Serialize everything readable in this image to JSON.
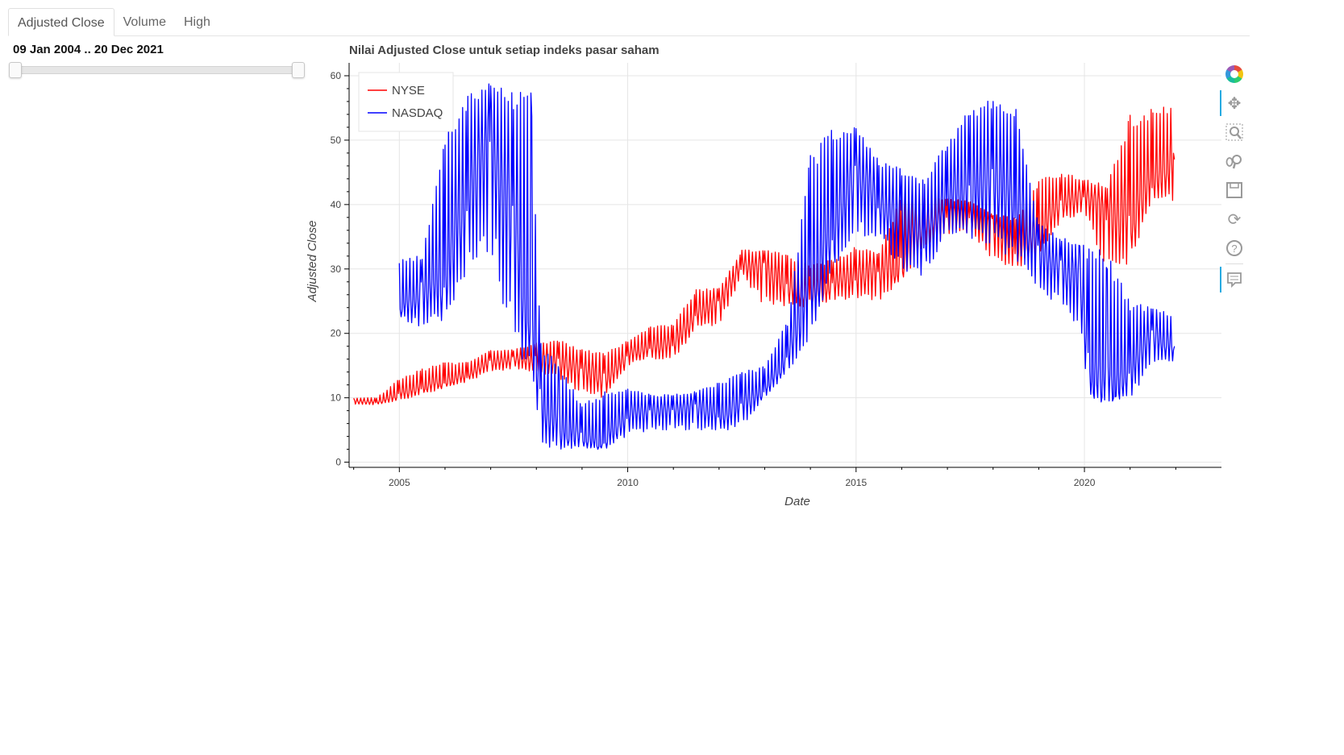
{
  "tabs": [
    {
      "label": "Adjusted Close",
      "active": true
    },
    {
      "label": "Volume",
      "active": false
    },
    {
      "label": "High",
      "active": false
    }
  ],
  "date_slider": {
    "label": "09 Jan 2004 .. 20 Dec 2021",
    "start": "2004-01-09",
    "end": "2021-12-20"
  },
  "toolbar": {
    "tools": [
      "bokeh-logo-icon",
      "pan-icon",
      "box-zoom-icon",
      "wheel-zoom-icon",
      "save-icon",
      "reset-icon",
      "help-icon",
      "hover-icon"
    ]
  },
  "colors": {
    "nyse": "#ff0000",
    "nasdaq": "#0000ff",
    "accent": "#26aae1"
  },
  "chart_data": {
    "type": "line",
    "title": "Nilai Adjusted Close untuk setiap indeks pasar saham",
    "xlabel": "Date",
    "ylabel": "Adjusted Close",
    "xlim": [
      2003.9,
      2023.0
    ],
    "ylim": [
      -0.8,
      62
    ],
    "x_ticks": [
      2005,
      2010,
      2015,
      2020
    ],
    "y_ticks": [
      0,
      10,
      20,
      30,
      40,
      50,
      60
    ],
    "grid": true,
    "legend": {
      "placement": "top-left",
      "entries": [
        "NYSE",
        "NASDAQ"
      ]
    },
    "series": [
      {
        "name": "NYSE",
        "color": "#ff0000",
        "x": [
          2004.0,
          2004.5,
          2005.0,
          2005.5,
          2006.0,
          2006.5,
          2007.0,
          2007.5,
          2008.0,
          2008.5,
          2009.0,
          2009.5,
          2010.0,
          2010.5,
          2011.0,
          2011.5,
          2012.0,
          2012.5,
          2013.0,
          2013.5,
          2014.0,
          2014.5,
          2015.0,
          2015.5,
          2016.0,
          2016.5,
          2017.0,
          2017.5,
          2018.0,
          2018.5,
          2019.0,
          2019.5,
          2020.0,
          2020.5,
          2021.0,
          2021.5,
          2021.97
        ],
        "y": [
          9.5,
          9.3,
          10.5,
          11.5,
          12.5,
          13.5,
          15.5,
          16.0,
          16.0,
          15.5,
          14.5,
          13.0,
          16.5,
          18.0,
          18.5,
          23.0,
          25.0,
          30.5,
          30.5,
          27.0,
          26.0,
          27.5,
          29.0,
          30.0,
          30.5,
          37.0,
          38.5,
          38.0,
          37.0,
          33.0,
          35.0,
          40.0,
          41.5,
          38.5,
          38.0,
          44.0,
          47.0
        ],
        "spike_low": [
          9.0,
          8.9,
          9.5,
          10.5,
          11.5,
          12.5,
          14.0,
          14.5,
          14.0,
          13.0,
          10.5,
          10.0,
          15.0,
          16.0,
          16.0,
          20.5,
          21.0,
          29.0,
          24.0,
          24.0,
          24.0,
          25.0,
          25.5,
          25.0,
          28.0,
          33.0,
          35.0,
          35.5,
          31.0,
          30.0,
          32.0,
          37.5,
          38.5,
          29.0,
          31.0,
          40.0,
          40.0
        ],
        "spike_high": [
          10.0,
          10.0,
          13.0,
          14.5,
          15.5,
          15.5,
          17.5,
          17.5,
          18.5,
          19.0,
          17.5,
          17.0,
          19.0,
          21.0,
          21.5,
          27.0,
          27.0,
          33.0,
          33.0,
          32.5,
          30.5,
          31.5,
          33.5,
          32.5,
          42.0,
          41.5,
          41.0,
          40.5,
          38.5,
          38.0,
          44.0,
          45.0,
          44.0,
          43.0,
          54.0,
          55.0,
          55.5
        ]
      },
      {
        "name": "NASDAQ",
        "color": "#0000ff",
        "x": [
          2005.0,
          2005.5,
          2006.0,
          2006.5,
          2007.0,
          2007.5,
          2007.9,
          2008.1,
          2008.5,
          2009.0,
          2009.5,
          2010.0,
          2010.5,
          2011.0,
          2011.5,
          2012.0,
          2012.5,
          2013.0,
          2013.5,
          2014.0,
          2014.5,
          2015.0,
          2015.5,
          2016.0,
          2016.5,
          2017.0,
          2017.5,
          2018.0,
          2018.5,
          2019.0,
          2019.5,
          2019.9,
          2020.1,
          2020.5,
          2021.0,
          2021.5,
          2021.97
        ],
        "y": [
          24.0,
          27.0,
          29.0,
          42.0,
          52.0,
          36.0,
          19.0,
          10.0,
          5.0,
          4.0,
          3.0,
          7.5,
          8.0,
          8.5,
          9.0,
          7.0,
          9.0,
          11.0,
          16.0,
          27.0,
          35.0,
          45.0,
          40.0,
          38.0,
          35.0,
          41.0,
          42.0,
          45.0,
          40.0,
          33.0,
          30.0,
          29.0,
          14.0,
          12.0,
          14.0,
          20.0,
          18.0
        ],
        "spike_low": [
          22.5,
          20.5,
          22.0,
          28.0,
          33.0,
          17.0,
          14.0,
          2.5,
          2.0,
          2.0,
          2.0,
          4.0,
          5.0,
          5.0,
          5.0,
          4.5,
          5.5,
          10.0,
          14.0,
          19.0,
          29.0,
          35.0,
          35.0,
          29.0,
          29.0,
          35.0,
          34.0,
          33.0,
          31.0,
          25.0,
          25.0,
          20.0,
          10.0,
          9.0,
          10.0,
          15.0,
          15.5
        ],
        "spike_high": [
          32.0,
          32.0,
          52.0,
          57.0,
          59.0,
          57.5,
          57.5,
          18.5,
          15.0,
          9.0,
          11.0,
          11.5,
          10.5,
          10.5,
          11.0,
          12.5,
          14.0,
          15.0,
          22.0,
          48.0,
          52.0,
          52.5,
          47.0,
          45.5,
          44.0,
          50.0,
          55.0,
          56.5,
          55.0,
          37.0,
          35.0,
          34.0,
          34.0,
          33.0,
          25.0,
          24.0,
          23.0
        ]
      }
    ]
  }
}
